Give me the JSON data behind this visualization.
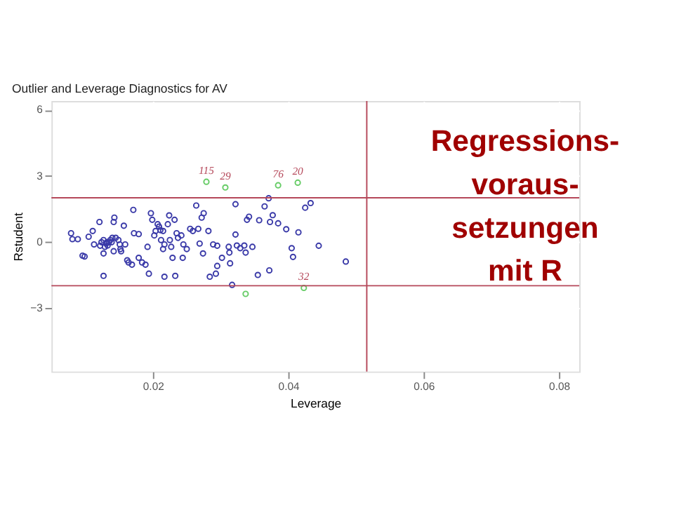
{
  "chart_data": {
    "type": "scatter",
    "title": "Outlier and Leverage Diagnostics for AV",
    "xlabel": "Leverage",
    "ylabel": "Rstudent",
    "xlim": [
      0.005,
      0.083
    ],
    "xticks": [
      0.02,
      0.04,
      0.06,
      0.08
    ],
    "ylim": [
      -5.9,
      6.4
    ],
    "yticks": [
      -3,
      0,
      3,
      6
    ],
    "grid": true,
    "marker": "circle",
    "series": [
      {
        "color": "#3a3aa8",
        "x": [
          0.0079,
          0.0081,
          0.0089,
          0.0096,
          0.0099,
          0.0105,
          0.0111,
          0.0113,
          0.0121,
          0.0122,
          0.0124,
          0.0127,
          0.0127,
          0.0129,
          0.0131,
          0.0132,
          0.0133,
          0.0135,
          0.0137,
          0.0139,
          0.014,
          0.0142,
          0.0142,
          0.0143,
          0.0145,
          0.0149,
          0.0151,
          0.0152,
          0.0153,
          0.0157,
          0.0159,
          0.0162,
          0.0164,
          0.0169,
          0.0171,
          0.0172,
          0.0179,
          0.0179,
          0.0184,
          0.0189,
          0.0192,
          0.0194,
          0.0197,
          0.0199,
          0.0202,
          0.0204,
          0.0207,
          0.0209,
          0.0211,
          0.0212,
          0.0215,
          0.0215,
          0.0217,
          0.0222,
          0.0224,
          0.0225,
          0.0227,
          0.0229,
          0.0232,
          0.0233,
          0.0235,
          0.0237,
          0.0242,
          0.0244,
          0.0245,
          0.025,
          0.0255,
          0.0259,
          0.0264,
          0.0267,
          0.0269,
          0.0272,
          0.0274,
          0.0275,
          0.0282,
          0.0284,
          0.0289,
          0.0127,
          0.0217,
          0.0322,
          0.0371,
          0.0365,
          0.0342,
          0.0339,
          0.0357,
          0.0373,
          0.0377,
          0.0385,
          0.0397,
          0.0415,
          0.0425,
          0.0433,
          0.0322,
          0.0295,
          0.0302,
          0.0312,
          0.0313,
          0.0324,
          0.0329,
          0.0335,
          0.0337,
          0.0347,
          0.0405,
          0.0407,
          0.0445,
          0.0314,
          0.0295,
          0.0293,
          0.0317,
          0.0355,
          0.0372,
          0.0485
        ],
        "values": [
          0.39,
          0.12,
          0.12,
          -0.63,
          -0.67,
          0.23,
          0.49,
          -0.12,
          0.9,
          -0.18,
          -0.02,
          0.08,
          -0.53,
          -0.23,
          -0.08,
          -0.02,
          -0.17,
          -0.02,
          0.08,
          -0.02,
          0.18,
          0.9,
          -0.43,
          1.1,
          0.18,
          0.08,
          -0.12,
          -0.33,
          -0.43,
          0.73,
          -0.12,
          -0.84,
          -0.94,
          -1.04,
          1.45,
          0.39,
          0.35,
          -0.73,
          -0.94,
          -1.04,
          -0.23,
          -1.45,
          1.3,
          1.0,
          0.29,
          0.49,
          0.8,
          0.69,
          0.53,
          0.08,
          0.49,
          -0.33,
          -0.12,
          0.8,
          1.2,
          0.08,
          -0.23,
          -0.73,
          1.0,
          -1.55,
          0.39,
          0.18,
          0.29,
          -0.73,
          -0.12,
          -0.33,
          0.59,
          0.49,
          1.65,
          0.59,
          -0.08,
          1.1,
          -0.53,
          1.3,
          0.49,
          -1.59,
          -0.12,
          -1.55,
          -1.59,
          1.71,
          1.98,
          1.61,
          1.14,
          1.0,
          0.98,
          0.9,
          1.21,
          0.84,
          0.57,
          0.43,
          1.55,
          1.76,
          0.33,
          -0.18,
          -0.73,
          -0.23,
          -0.49,
          -0.17,
          -0.29,
          -0.17,
          -0.49,
          -0.23,
          -0.29,
          -0.69,
          -0.18,
          -0.98,
          -1.1,
          -1.45,
          -1.96,
          -1.51,
          -1.3,
          -0.9
        ]
      },
      {
        "color": "#66cc66",
        "x": [
          0.0279,
          0.0307,
          0.0385,
          0.0414,
          0.0423,
          0.0337
        ],
        "values": [
          2.73,
          2.47,
          2.57,
          2.69,
          -2.1,
          -2.37
        ]
      }
    ],
    "ref_lines": [
      {
        "axis": "y",
        "value": 2,
        "color": "#b5485a"
      },
      {
        "axis": "y",
        "value": -2,
        "color": "#b5485a"
      },
      {
        "axis": "x",
        "value": 0.0516,
        "color": "#b5485a"
      }
    ],
    "annotations": [
      {
        "text": "115",
        "x": 0.0279,
        "y": 2.73
      },
      {
        "text": "29",
        "x": 0.0307,
        "y": 2.47
      },
      {
        "text": "76",
        "x": 0.0385,
        "y": 2.57
      },
      {
        "text": "20",
        "x": 0.0414,
        "y": 2.69
      },
      {
        "text": "32",
        "x": 0.0423,
        "y": -2.1
      },
      "Regressions-",
      "voraus-",
      "setzungen",
      "mit R"
    ]
  }
}
